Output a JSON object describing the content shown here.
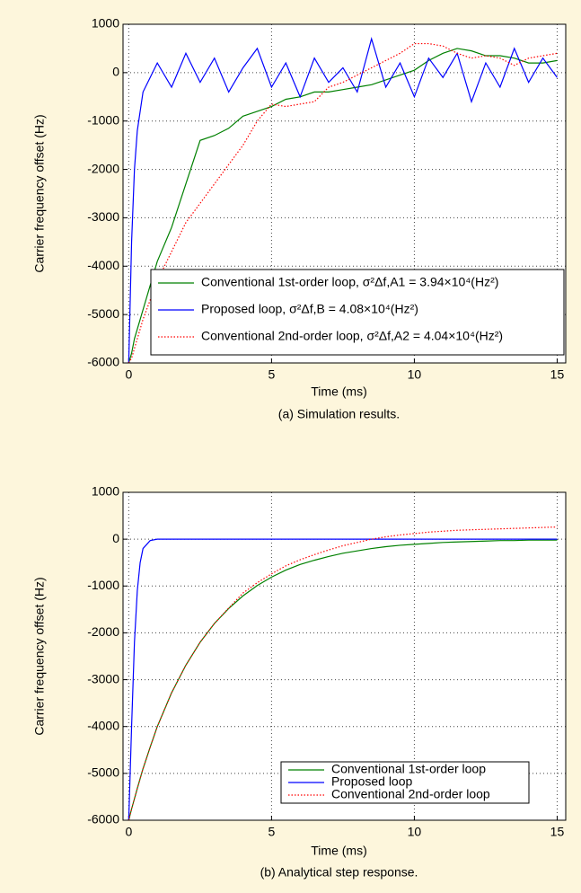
{
  "chart_data": [
    {
      "type": "line",
      "caption": "(a) Simulation results.",
      "xlabel": "Time (ms)",
      "ylabel": "Carrier frequency offset (Hz)",
      "x": [
        0,
        0.1,
        0.2,
        0.3,
        0.4,
        0.5,
        0.75,
        1,
        1.5,
        2,
        2.5,
        3,
        3.5,
        4,
        4.5,
        5,
        5.5,
        6,
        6.5,
        7,
        7.5,
        8,
        8.5,
        9,
        9.5,
        10,
        10.5,
        11,
        11.5,
        12,
        12.5,
        13,
        13.5,
        14,
        14.5,
        15
      ],
      "xlim": [
        -0.2,
        15.3
      ],
      "xticks": [
        0,
        5,
        10,
        15
      ],
      "ylim": [
        -6000,
        1000
      ],
      "yticks": [
        -6000,
        -5000,
        -4000,
        -3000,
        -2000,
        -1000,
        0,
        1000
      ],
      "grid": true,
      "legend": "lower right",
      "series": [
        {
          "name": "Conventional 1st-order loop,  σ²Δf,A1 = 3.94×10⁴(Hz²)",
          "color": "#008000",
          "linestyle": "solid",
          "values": [
            -6000,
            -5800,
            -5500,
            -5300,
            -5100,
            -4900,
            -4400,
            -3900,
            -3200,
            -2300,
            -1400,
            -1300,
            -1150,
            -900,
            -800,
            -700,
            -550,
            -500,
            -400,
            -400,
            -350,
            -300,
            -250,
            -150,
            -50,
            50,
            250,
            400,
            500,
            450,
            350,
            350,
            300,
            200,
            200,
            250
          ]
        },
        {
          "name": "Proposed loop,  σ²Δf,B = 4.08×10⁴(Hz²)",
          "color": "#0000ff",
          "linestyle": "solid",
          "values": [
            -6000,
            -3500,
            -2000,
            -1200,
            -800,
            -400,
            -100,
            200,
            -300,
            400,
            -200,
            300,
            -400,
            100,
            500,
            -300,
            200,
            -500,
            300,
            -200,
            100,
            -400,
            700,
            -300,
            200,
            -500,
            300,
            -100,
            400,
            -600,
            200,
            -300,
            500,
            -200,
            300,
            -100
          ]
        },
        {
          "name": "Conventional 2nd-order loop,  σ²Δf,A2 = 4.04×10⁴(Hz²)",
          "color": "#ff0000",
          "linestyle": "dotted",
          "values": [
            -6000,
            -5900,
            -5700,
            -5500,
            -5300,
            -5100,
            -4700,
            -4300,
            -3700,
            -3100,
            -2700,
            -2300,
            -1900,
            -1500,
            -1000,
            -650,
            -700,
            -650,
            -600,
            -300,
            -200,
            -50,
            100,
            250,
            400,
            600,
            600,
            550,
            400,
            300,
            350,
            300,
            150,
            300,
            350,
            400
          ]
        }
      ]
    },
    {
      "type": "line",
      "caption": "(b) Analytical step response.",
      "xlabel": "Time (ms)",
      "ylabel": "Carrier frequency offset (Hz)",
      "x": [
        0,
        0.1,
        0.2,
        0.3,
        0.4,
        0.5,
        0.75,
        1,
        1.5,
        2,
        2.5,
        3,
        3.5,
        4,
        4.5,
        5,
        5.5,
        6,
        6.5,
        7,
        7.5,
        8,
        8.5,
        9,
        9.5,
        10,
        10.5,
        11,
        11.5,
        12,
        12.5,
        13,
        13.5,
        14,
        14.5,
        15
      ],
      "xlim": [
        -0.2,
        15.3
      ],
      "xticks": [
        0,
        5,
        10,
        15
      ],
      "ylim": [
        -6000,
        1000
      ],
      "yticks": [
        -6000,
        -5000,
        -4000,
        -3000,
        -2000,
        -1000,
        0,
        1000
      ],
      "grid": true,
      "legend": "lower right",
      "series": [
        {
          "name": "Conventional 1st-order loop",
          "color": "#008000",
          "linestyle": "solid",
          "values": [
            -6000,
            -5760,
            -5540,
            -5320,
            -5110,
            -4900,
            -4440,
            -4000,
            -3280,
            -2690,
            -2200,
            -1800,
            -1480,
            -1210,
            -990,
            -810,
            -660,
            -540,
            -450,
            -370,
            -300,
            -250,
            -200,
            -160,
            -130,
            -110,
            -90,
            -70,
            -60,
            -50,
            -40,
            -30,
            -30,
            -20,
            -20,
            -20
          ]
        },
        {
          "name": "Proposed loop",
          "color": "#0000ff",
          "linestyle": "solid",
          "values": [
            -6000,
            -4000,
            -2200,
            -1100,
            -500,
            -200,
            -30,
            0,
            0,
            0,
            0,
            0,
            0,
            0,
            0,
            0,
            0,
            0,
            0,
            0,
            0,
            0,
            0,
            0,
            0,
            0,
            0,
            0,
            0,
            0,
            0,
            0,
            0,
            0,
            0,
            0
          ]
        },
        {
          "name": "Conventional 2nd-order loop",
          "color": "#ff0000",
          "linestyle": "dotted",
          "values": [
            -6000,
            -5760,
            -5540,
            -5320,
            -5110,
            -4900,
            -4440,
            -4000,
            -3280,
            -2690,
            -2200,
            -1800,
            -1470,
            -1150,
            -930,
            -740,
            -570,
            -440,
            -330,
            -230,
            -140,
            -70,
            0,
            50,
            90,
            120,
            150,
            170,
            190,
            200,
            210,
            220,
            230,
            240,
            250,
            260
          ]
        }
      ]
    }
  ]
}
